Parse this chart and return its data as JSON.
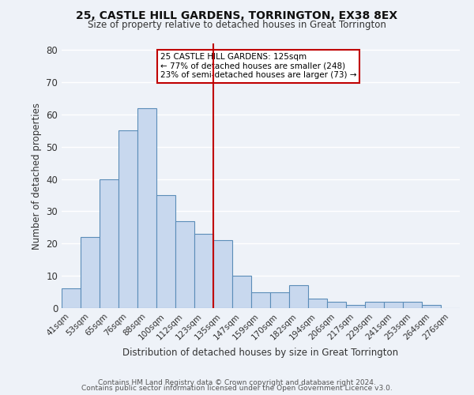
{
  "title": "25, CASTLE HILL GARDENS, TORRINGTON, EX38 8EX",
  "subtitle": "Size of property relative to detached houses in Great Torrington",
  "xlabel": "Distribution of detached houses by size in Great Torrington",
  "ylabel": "Number of detached properties",
  "bar_labels": [
    "41sqm",
    "53sqm",
    "65sqm",
    "76sqm",
    "88sqm",
    "100sqm",
    "112sqm",
    "123sqm",
    "135sqm",
    "147sqm",
    "159sqm",
    "170sqm",
    "182sqm",
    "194sqm",
    "206sqm",
    "217sqm",
    "229sqm",
    "241sqm",
    "253sqm",
    "264sqm",
    "276sqm"
  ],
  "bar_values": [
    6,
    22,
    40,
    55,
    62,
    35,
    27,
    23,
    21,
    10,
    5,
    5,
    7,
    3,
    2,
    1,
    2,
    2,
    2,
    1,
    0
  ],
  "bar_color": "#c8d8ee",
  "bar_edge_color": "#5b8db8",
  "vline_x_index": 7,
  "vline_color": "#c00000",
  "annotation_title": "25 CASTLE HILL GARDENS: 125sqm",
  "annotation_line1": "← 77% of detached houses are smaller (248)",
  "annotation_line2": "23% of semi-detached houses are larger (73) →",
  "annotation_box_color": "#c00000",
  "ylim": [
    0,
    82
  ],
  "yticks": [
    0,
    10,
    20,
    30,
    40,
    50,
    60,
    70,
    80
  ],
  "footer1": "Contains HM Land Registry data © Crown copyright and database right 2024.",
  "footer2": "Contains public sector information licensed under the Open Government Licence v3.0.",
  "bg_color": "#eef2f8",
  "grid_color": "#d8e0ec"
}
